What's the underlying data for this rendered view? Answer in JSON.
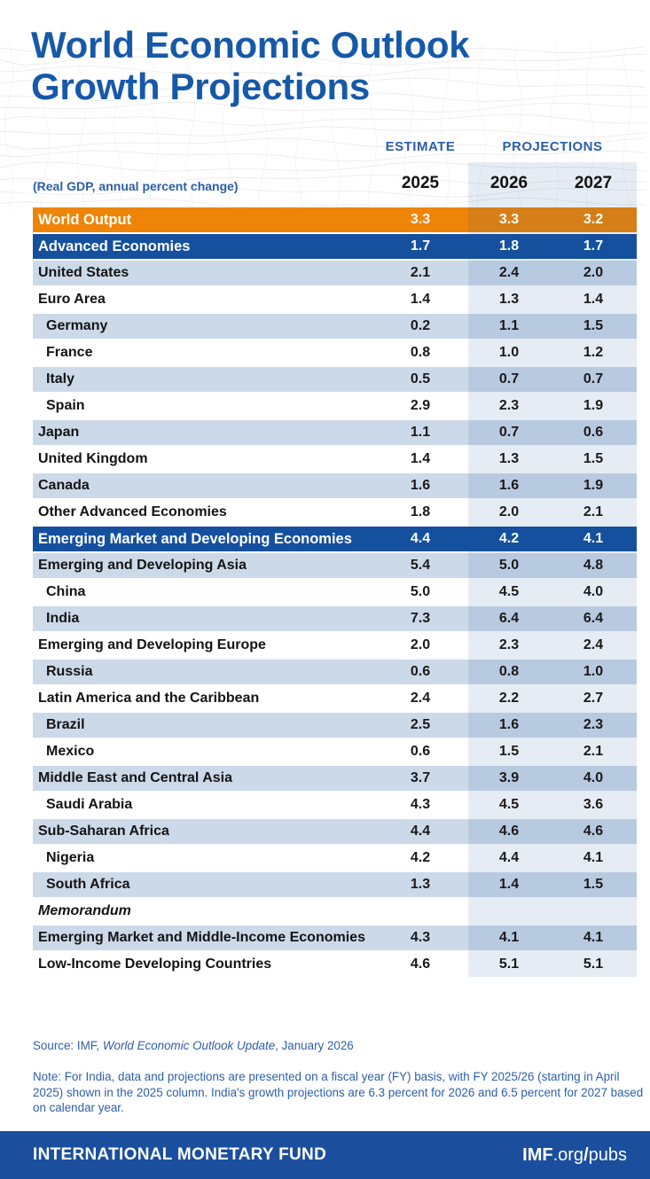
{
  "title_line1": "World Economic Outlook",
  "title_line2": "Growth Projections",
  "header": {
    "estimate_label": "ESTIMATE",
    "projections_label": "PROJECTIONS",
    "unit_note": "(Real GDP, annual percent change)",
    "year_estimate": "2025",
    "year_proj1": "2026",
    "year_proj2": "2027"
  },
  "chart_data": {
    "type": "table",
    "title": "World Economic Outlook Growth Projections",
    "unit": "Real GDP, annual percent change",
    "columns": [
      "2025",
      "2026",
      "2027"
    ],
    "column_groups": {
      "estimate": [
        "2025"
      ],
      "projections": [
        "2026",
        "2027"
      ]
    },
    "rows": [
      {
        "label": "World Output",
        "values": [
          3.3,
          3.3,
          3.2
        ],
        "style": "orange",
        "indent": 0
      },
      {
        "label": "Advanced Economies",
        "values": [
          1.7,
          1.8,
          1.7
        ],
        "style": "darkblue",
        "indent": 0
      },
      {
        "label": "United States",
        "values": [
          2.1,
          2.4,
          2.0
        ],
        "style": "light",
        "indent": 0
      },
      {
        "label": "Euro Area",
        "values": [
          1.4,
          1.3,
          1.4
        ],
        "style": "white",
        "indent": 0
      },
      {
        "label": "Germany",
        "values": [
          0.2,
          1.1,
          1.5
        ],
        "style": "light",
        "indent": 1
      },
      {
        "label": "France",
        "values": [
          0.8,
          1.0,
          1.2
        ],
        "style": "white",
        "indent": 1
      },
      {
        "label": "Italy",
        "values": [
          0.5,
          0.7,
          0.7
        ],
        "style": "light",
        "indent": 1
      },
      {
        "label": "Spain",
        "values": [
          2.9,
          2.3,
          1.9
        ],
        "style": "white",
        "indent": 1
      },
      {
        "label": "Japan",
        "values": [
          1.1,
          0.7,
          0.6
        ],
        "style": "light",
        "indent": 0
      },
      {
        "label": "United Kingdom",
        "values": [
          1.4,
          1.3,
          1.5
        ],
        "style": "white",
        "indent": 0
      },
      {
        "label": "Canada",
        "values": [
          1.6,
          1.6,
          1.9
        ],
        "style": "light",
        "indent": 0
      },
      {
        "label": "Other Advanced Economies",
        "values": [
          1.8,
          2.0,
          2.1
        ],
        "style": "white",
        "indent": 0
      },
      {
        "label": "Emerging Market and Developing Economies",
        "values": [
          4.4,
          4.2,
          4.1
        ],
        "style": "darkblue",
        "indent": 0
      },
      {
        "label": "Emerging and Developing Asia",
        "values": [
          5.4,
          5.0,
          4.8
        ],
        "style": "light",
        "indent": 0
      },
      {
        "label": "China",
        "values": [
          5.0,
          4.5,
          4.0
        ],
        "style": "white",
        "indent": 1
      },
      {
        "label": "India",
        "values": [
          7.3,
          6.4,
          6.4
        ],
        "style": "light",
        "indent": 1
      },
      {
        "label": "Emerging and Developing Europe",
        "values": [
          2.0,
          2.3,
          2.4
        ],
        "style": "white",
        "indent": 0
      },
      {
        "label": "Russia",
        "values": [
          0.6,
          0.8,
          1.0
        ],
        "style": "light",
        "indent": 1
      },
      {
        "label": "Latin America and the Caribbean",
        "values": [
          2.4,
          2.2,
          2.7
        ],
        "style": "white",
        "indent": 0
      },
      {
        "label": "Brazil",
        "values": [
          2.5,
          1.6,
          2.3
        ],
        "style": "light",
        "indent": 1
      },
      {
        "label": "Mexico",
        "values": [
          0.6,
          1.5,
          2.1
        ],
        "style": "white",
        "indent": 1
      },
      {
        "label": "Middle East and Central Asia",
        "values": [
          3.7,
          3.9,
          4.0
        ],
        "style": "light",
        "indent": 0
      },
      {
        "label": "Saudi Arabia",
        "values": [
          4.3,
          4.5,
          3.6
        ],
        "style": "white",
        "indent": 1
      },
      {
        "label": "Sub-Saharan Africa",
        "values": [
          4.4,
          4.6,
          4.6
        ],
        "style": "light",
        "indent": 0
      },
      {
        "label": "Nigeria",
        "values": [
          4.2,
          4.4,
          4.1
        ],
        "style": "white",
        "indent": 1
      },
      {
        "label": "South Africa",
        "values": [
          1.3,
          1.4,
          1.5
        ],
        "style": "light",
        "indent": 1
      },
      {
        "label": "Memorandum",
        "values": [
          null,
          null,
          null
        ],
        "style": "memo",
        "indent": 0
      },
      {
        "label": "Emerging Market and Middle-Income Economies",
        "values": [
          4.3,
          4.1,
          4.1
        ],
        "style": "light",
        "indent": 0
      },
      {
        "label": "Low-Income Developing Countries",
        "values": [
          4.6,
          5.1,
          5.1
        ],
        "style": "white",
        "indent": 0
      }
    ]
  },
  "footnotes": {
    "source_prefix": "Source: IMF, ",
    "source_italic": "World Economic Outlook Update",
    "source_suffix": ", January 2026",
    "note": "Note: For India, data and projections are presented on a fiscal year (FY) basis, with FY 2025/26 (starting in April 2025) shown in the 2025 column. India's growth projections are 6.3 percent for 2026 and 6.5 percent for 2027 based on calendar year."
  },
  "footer": {
    "org_name": "INTERNATIONAL MONETARY FUND",
    "site_name": "IMF",
    "site_domain": ".org",
    "site_slash": "/",
    "site_path": "pubs"
  },
  "colors": {
    "title_blue": "#1659a8",
    "header_label_blue": "#2b5fa8",
    "orange_row": "#ee8509",
    "dark_blue_row": "#15509f",
    "light_row": "#ccd9e9",
    "footer_bar": "#1b4f9e",
    "note_blue": "#2d5fa6",
    "band_tint": "rgba(27,79,158,0.11)"
  }
}
